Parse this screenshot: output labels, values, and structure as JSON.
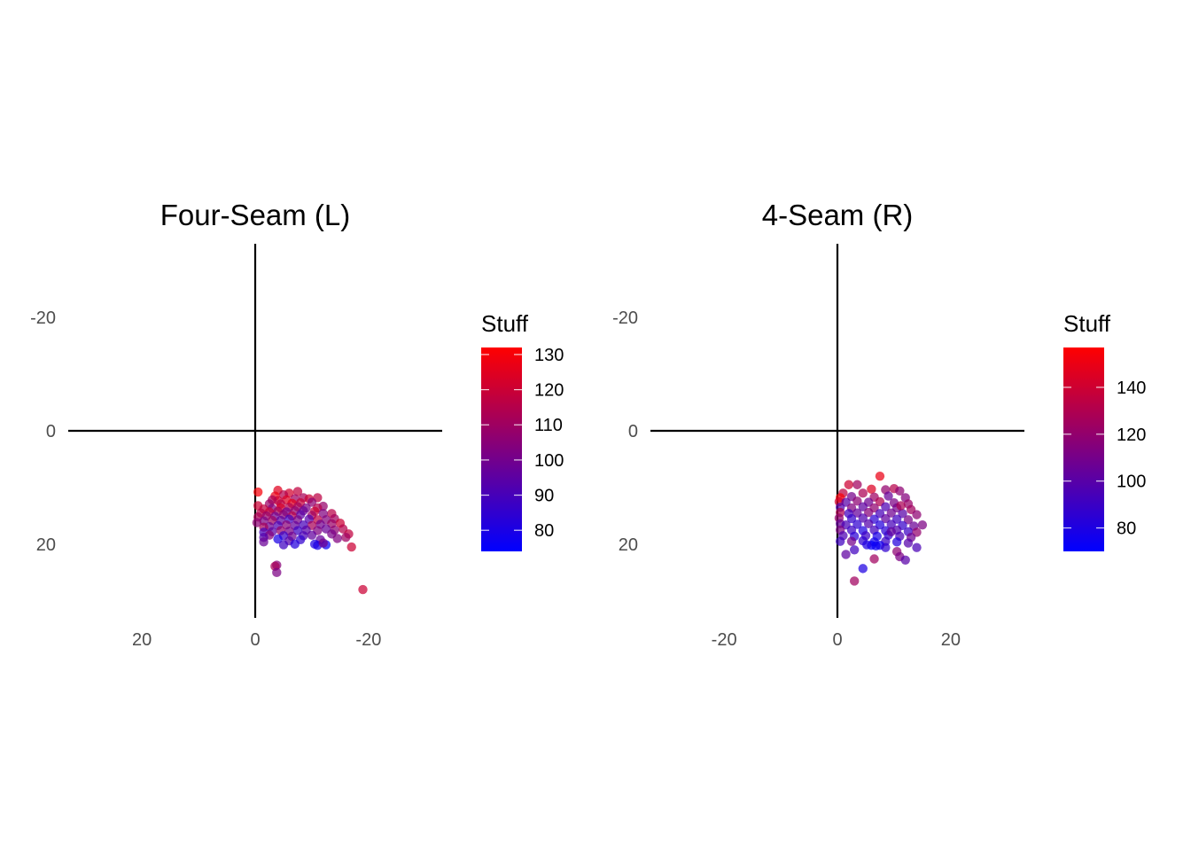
{
  "chart_data": [
    {
      "type": "scatter",
      "title": "Four-Seam (L)",
      "xlim": [
        33,
        -33
      ],
      "ylim": [
        -33,
        33
      ],
      "x_ticks": [
        20,
        0,
        -20
      ],
      "x_tick_labels": [
        "20",
        "0",
        "-20"
      ],
      "y_ticks": [
        -20,
        0,
        20
      ],
      "y_tick_labels": [
        "-20",
        "0",
        "20"
      ],
      "grid": false,
      "axis_lines_at_zero": true,
      "color_scale": {
        "title": "Stuff",
        "min": 74,
        "max": 132,
        "ticks": [
          80,
          90,
          100,
          110,
          120,
          130
        ],
        "tick_labels": [
          "80",
          "90",
          "100",
          "110",
          "120",
          "130"
        ],
        "low_color": "#0000FF",
        "high_color": "#FF0000"
      },
      "points": [
        [
          -4,
          10.5,
          125
        ],
        [
          -0.5,
          10.8,
          130
        ],
        [
          -7.5,
          10.7,
          118
        ],
        [
          -6,
          11,
          122
        ],
        [
          -5,
          11.3,
          115
        ],
        [
          -3.5,
          11.5,
          127
        ],
        [
          -8.5,
          11.8,
          112
        ],
        [
          -11,
          11.8,
          117
        ],
        [
          -9.5,
          12,
          120
        ],
        [
          -7,
          12,
          110
        ],
        [
          -5.5,
          12.2,
          124
        ],
        [
          -4,
          12.3,
          121
        ],
        [
          -3,
          12.2,
          113
        ],
        [
          -10,
          12.6,
          106
        ],
        [
          -8,
          12.7,
          119
        ],
        [
          -6.5,
          12.8,
          126
        ],
        [
          -4.5,
          12.9,
          116
        ],
        [
          -2.5,
          12.9,
          109
        ],
        [
          -0.5,
          13.2,
          120
        ],
        [
          -12,
          13.3,
          108
        ],
        [
          -11,
          13.6,
          115
        ],
        [
          -9,
          13.6,
          102
        ],
        [
          -7.5,
          13.4,
          111
        ],
        [
          -6,
          13.5,
          114
        ],
        [
          -4.5,
          13.6,
          123
        ],
        [
          -3,
          13.7,
          104
        ],
        [
          -1.5,
          13.8,
          118
        ],
        [
          -10.5,
          14.2,
          120
        ],
        [
          -8.5,
          14.1,
          98
        ],
        [
          -7,
          14.1,
          107
        ],
        [
          -5.5,
          14.3,
          100
        ],
        [
          -4,
          14.2,
          112
        ],
        [
          -2.5,
          14.3,
          119
        ],
        [
          -1,
          14.5,
          116
        ],
        [
          -13.5,
          14.6,
          116
        ],
        [
          -12,
          14.6,
          103
        ],
        [
          -10,
          14.9,
          110
        ],
        [
          -8,
          14.8,
          95
        ],
        [
          -6.5,
          15,
          115
        ],
        [
          -5,
          14.8,
          105
        ],
        [
          -3.5,
          15.1,
          99
        ],
        [
          -2,
          15,
          108
        ],
        [
          -0.5,
          15.2,
          113
        ],
        [
          -14,
          15.5,
          111
        ],
        [
          -12.5,
          15.7,
          104
        ],
        [
          -11,
          15.7,
          117
        ],
        [
          -9.5,
          15.6,
          93
        ],
        [
          -7.5,
          15.7,
          101
        ],
        [
          -6,
          15.6,
          89
        ],
        [
          -4.5,
          15.8,
          96
        ],
        [
          -3,
          15.8,
          110
        ],
        [
          -1.5,
          15.9,
          102
        ],
        [
          -0.3,
          16.2,
          106
        ],
        [
          -15,
          16.3,
          120
        ],
        [
          -13.5,
          16.4,
          109
        ],
        [
          -11.5,
          16.5,
          100
        ],
        [
          -10,
          16.7,
          112
        ],
        [
          -8.5,
          16.6,
          90
        ],
        [
          -7,
          16.7,
          97
        ],
        [
          -5.5,
          16.6,
          105
        ],
        [
          -4,
          16.7,
          92
        ],
        [
          -2.5,
          16.9,
          99
        ],
        [
          -1.5,
          17,
          111
        ],
        [
          -15.5,
          17.3,
          115
        ],
        [
          -14,
          17.5,
          106
        ],
        [
          -12.5,
          17.3,
          98
        ],
        [
          -11,
          17.6,
          103
        ],
        [
          -9,
          17.5,
          94
        ],
        [
          -7.5,
          17.6,
          88
        ],
        [
          -6,
          17.7,
          101
        ],
        [
          -4.5,
          17.6,
          108
        ],
        [
          -3,
          17.8,
          95
        ],
        [
          -1.5,
          17.9,
          90
        ],
        [
          -16.5,
          18.2,
          118
        ],
        [
          -13.5,
          18.2,
          101
        ],
        [
          -10,
          18.4,
          96
        ],
        [
          -8.5,
          18.5,
          91
        ],
        [
          -6.5,
          18.6,
          99
        ],
        [
          -5,
          18.5,
          87
        ],
        [
          -2.5,
          18.4,
          104
        ],
        [
          -1.5,
          18.8,
          93
        ],
        [
          -16,
          18.8,
          110
        ],
        [
          -14.5,
          19,
          103
        ],
        [
          -11.5,
          19.2,
          97
        ],
        [
          -8,
          19.2,
          85
        ],
        [
          -6,
          19.4,
          94
        ],
        [
          -4,
          19.1,
          80
        ],
        [
          -1.5,
          19.6,
          98
        ],
        [
          -12.5,
          20.1,
          76
        ],
        [
          -11,
          20.2,
          79
        ],
        [
          -10.5,
          20,
          81
        ],
        [
          -7,
          20,
          82
        ],
        [
          -5,
          20.1,
          88
        ],
        [
          -12,
          19.8,
          100
        ],
        [
          -17,
          20.5,
          120
        ],
        [
          -3.8,
          23.7,
          105
        ],
        [
          -3.5,
          23.9,
          112
        ],
        [
          -3.8,
          25,
          102
        ],
        [
          -19,
          28,
          120
        ]
      ]
    },
    {
      "type": "scatter",
      "title": "4-Seam (R)",
      "xlim": [
        -33,
        33
      ],
      "ylim": [
        -33,
        33
      ],
      "x_ticks": [
        -20,
        0,
        20
      ],
      "x_tick_labels": [
        "-20",
        "0",
        "20"
      ],
      "y_ticks": [
        -20,
        0,
        20
      ],
      "y_tick_labels": [
        "-20",
        "0",
        "20"
      ],
      "grid": false,
      "axis_lines_at_zero": true,
      "color_scale": {
        "title": "Stuff",
        "min": 70,
        "max": 157,
        "ticks": [
          80,
          100,
          120,
          140
        ],
        "tick_labels": [
          "80",
          "100",
          "120",
          "140"
        ],
        "low_color": "#0000FF",
        "high_color": "#FF0000"
      },
      "points": [
        [
          7.5,
          8,
          150
        ],
        [
          2,
          9.5,
          140
        ],
        [
          3.5,
          9.5,
          125
        ],
        [
          10,
          10.2,
          132
        ],
        [
          6,
          10.3,
          145
        ],
        [
          8.5,
          10.4,
          120
        ],
        [
          11,
          10.6,
          118
        ],
        [
          1,
          11,
          135
        ],
        [
          4.5,
          11,
          128
        ],
        [
          0.5,
          11.8,
          155
        ],
        [
          2.5,
          11.6,
          110
        ],
        [
          6.5,
          11.7,
          124
        ],
        [
          9,
          11.5,
          105
        ],
        [
          12,
          11.8,
          115
        ],
        [
          0.3,
          12.5,
          142
        ],
        [
          1.5,
          12.6,
          100
        ],
        [
          3.5,
          12.4,
          118
        ],
        [
          5.5,
          12.6,
          108
        ],
        [
          7.5,
          12.5,
          130
        ],
        [
          10,
          12.7,
          112
        ],
        [
          12.5,
          12.9,
          122
        ],
        [
          0.5,
          13.5,
          98
        ],
        [
          2.5,
          13.6,
          114
        ],
        [
          4.5,
          13.4,
          102
        ],
        [
          6.5,
          13.6,
          119
        ],
        [
          8.5,
          13.4,
          96
        ],
        [
          10.5,
          13.6,
          110
        ],
        [
          13,
          13.9,
          125
        ],
        [
          0.5,
          14.4,
          130
        ],
        [
          2,
          14.6,
          92
        ],
        [
          3.5,
          14.5,
          104
        ],
        [
          5.5,
          14.4,
          116
        ],
        [
          7.5,
          14.6,
          94
        ],
        [
          9.5,
          14.5,
          108
        ],
        [
          11.5,
          14.6,
          100
        ],
        [
          14,
          14.8,
          118
        ],
        [
          0.3,
          15.4,
          120
        ],
        [
          2.5,
          15.5,
          88
        ],
        [
          4.5,
          15.4,
          97
        ],
        [
          6.5,
          15.6,
          85
        ],
        [
          8.5,
          15.5,
          103
        ],
        [
          10.5,
          15.6,
          92
        ],
        [
          12.5,
          15.7,
          111
        ],
        [
          15,
          16.6,
          112
        ],
        [
          0.5,
          16.4,
          105
        ],
        [
          1.5,
          16.6,
          95
        ],
        [
          3.5,
          16.5,
          86
        ],
        [
          5.5,
          16.4,
          99
        ],
        [
          7.5,
          16.6,
          82
        ],
        [
          9.5,
          16.5,
          94
        ],
        [
          11.5,
          16.7,
          88
        ],
        [
          13.5,
          16.8,
          106
        ],
        [
          0.5,
          17.5,
          112
        ],
        [
          2.5,
          17.5,
          90
        ],
        [
          4.5,
          17.6,
          80
        ],
        [
          6.5,
          17.5,
          93
        ],
        [
          8.5,
          17.6,
          84
        ],
        [
          10.5,
          17.5,
          98
        ],
        [
          12.5,
          17.8,
          90
        ],
        [
          14,
          17.9,
          120
        ],
        [
          1,
          18.5,
          96
        ],
        [
          3,
          18.6,
          84
        ],
        [
          5,
          18.5,
          90
        ],
        [
          7,
          18.6,
          79
        ],
        [
          9,
          18.4,
          88
        ],
        [
          11,
          18.6,
          95
        ],
        [
          13,
          18.8,
          108
        ],
        [
          0.5,
          19.5,
          92
        ],
        [
          2.5,
          19.5,
          110
        ],
        [
          4.5,
          19.4,
          85
        ],
        [
          6.5,
          19.6,
          76
        ],
        [
          8.5,
          19.5,
          90
        ],
        [
          10.5,
          19.6,
          82
        ],
        [
          12.5,
          19.8,
          99
        ],
        [
          6,
          20.2,
          72
        ],
        [
          6.8,
          20.3,
          74
        ],
        [
          7.5,
          20.2,
          75
        ],
        [
          5.2,
          20.1,
          80
        ],
        [
          8.5,
          20.6,
          86
        ],
        [
          14,
          20.6,
          95
        ],
        [
          3,
          21,
          92
        ],
        [
          1.5,
          21.8,
          102
        ],
        [
          10.5,
          21.3,
          118
        ],
        [
          11,
          22.2,
          112
        ],
        [
          12,
          22.8,
          100
        ],
        [
          6.5,
          22.6,
          125
        ],
        [
          4.5,
          24.3,
          80
        ],
        [
          3,
          26.5,
          125
        ],
        [
          9.5,
          17.8,
          103
        ],
        [
          11.2,
          13.2,
          128
        ]
      ]
    }
  ]
}
